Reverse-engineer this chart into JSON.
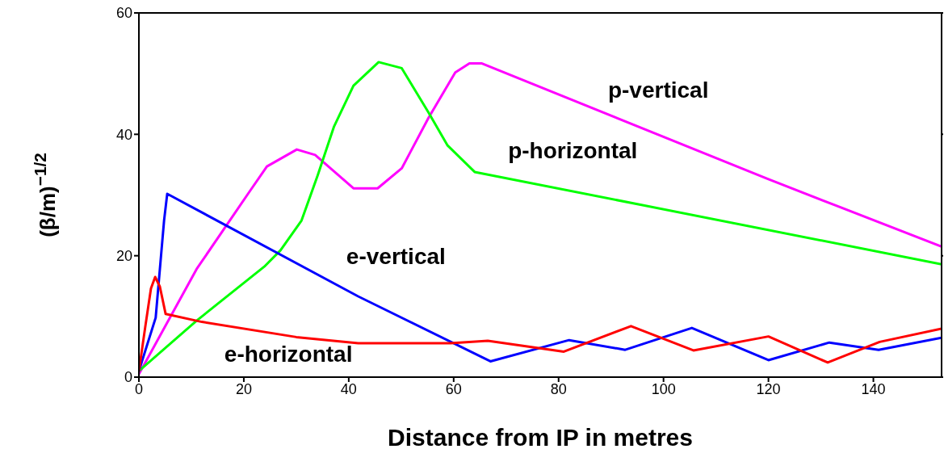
{
  "chart_data": {
    "type": "line",
    "xlabel": "Distance from IP in metres",
    "ylabel": "(β/m)$^{−1/2}$",
    "xlim": [
      0,
      153
    ],
    "ylim": [
      0,
      60
    ],
    "xticks": [
      0,
      20,
      40,
      60,
      80,
      100,
      120,
      140
    ],
    "yticks": [
      0,
      20,
      40,
      60
    ],
    "legend": false,
    "marker": "none",
    "line_style": "solid",
    "series": [
      {
        "name": "p-vertical",
        "color": "#ff00ff",
        "x": [
          0,
          11,
          20.8,
          24.4,
          30.1,
          33.6,
          40.9,
          45.5,
          50.1,
          55.2,
          60.3,
          63,
          65.3,
          120,
          153
        ],
        "values": [
          0.5,
          17.8,
          30.2,
          34.7,
          37.5,
          36.6,
          31.1,
          31.1,
          34.4,
          42.7,
          50.2,
          51.7,
          51.7,
          32.6,
          21.5
        ]
      },
      {
        "name": "p-horizontal",
        "color": "#00ff00",
        "x": [
          0,
          11,
          23.9,
          27,
          31,
          34.1,
          37.2,
          40.9,
          45.7,
          50.1,
          55.2,
          58.8,
          64,
          153
        ],
        "values": [
          1,
          9.3,
          18.2,
          20.9,
          25.8,
          33.3,
          41.3,
          48,
          51.9,
          50.9,
          43.6,
          38.2,
          33.8,
          18.6
        ]
      },
      {
        "name": "e-vertical",
        "color": "#0000ff",
        "x": [
          0,
          3.2,
          4.8,
          5.4,
          41.8,
          67,
          82,
          92.7,
          105.4,
          120,
          131.6,
          141,
          153
        ],
        "values": [
          1,
          9.8,
          25.8,
          30.2,
          13.3,
          2.6,
          6.1,
          4.5,
          8.1,
          2.8,
          5.7,
          4.5,
          6.5
        ]
      },
      {
        "name": "e-horizontal",
        "color": "#ff0000",
        "x": [
          0,
          1.2,
          2.3,
          3.1,
          4,
          5.1,
          12,
          30,
          41.8,
          59.4,
          66.5,
          81,
          93.8,
          105.7,
          120,
          131.3,
          141.2,
          153
        ],
        "values": [
          1,
          8.2,
          14.6,
          16.5,
          14.9,
          10.4,
          9.1,
          6.6,
          5.6,
          5.6,
          6,
          4.2,
          8.4,
          4.4,
          6.7,
          2.4,
          5.8,
          8
        ]
      }
    ]
  }
}
